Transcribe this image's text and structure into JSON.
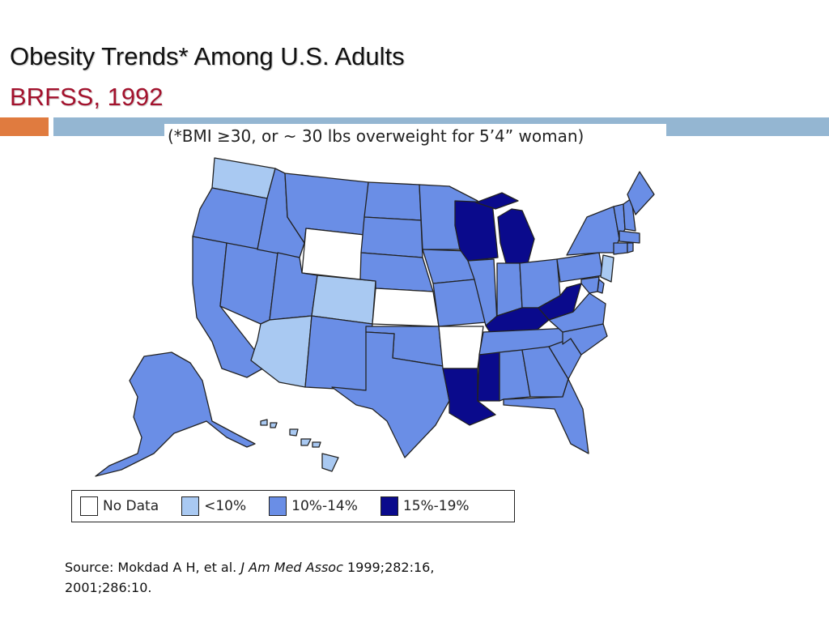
{
  "slide": {
    "title": "Obesity Trends* Among U.S. Adults",
    "subtitle": "BRFSS, 1992",
    "note": "(*BMI ≥30, or ~ 30 lbs overweight for 5’4” woman)"
  },
  "colors": {
    "no_data": "#ffffff",
    "lt10": "#a9c9f2",
    "p10_14": "#6a8ee6",
    "p15_19": "#0a0a8c",
    "title_red": "#a3122d",
    "accent_orange": "#e07b3f",
    "rule_blue": "#94b6d2"
  },
  "legend": [
    {
      "label": "No Data",
      "key": "no_data"
    },
    {
      "label": "<10%",
      "key": "lt10"
    },
    {
      "label": "10%-14%",
      "key": "p10_14"
    },
    {
      "label": "15%-19%",
      "key": "p15_19"
    }
  ],
  "map_data": {
    "categories": {
      "no_data": [
        "WY",
        "AR",
        "KS"
      ],
      "lt10": [
        "WA",
        "CO",
        "AZ",
        "NJ",
        "HI"
      ],
      "p15_19": [
        "WI",
        "MI",
        "KY",
        "WV",
        "MS",
        "LA"
      ]
    },
    "default_category": "p10_14"
  },
  "source": {
    "prefix": "Source: Mokdad A H, et al. ",
    "journal": "J Am Med Assoc",
    "suffix": " 1999;282:16,",
    "line2": "2001;286:10."
  }
}
